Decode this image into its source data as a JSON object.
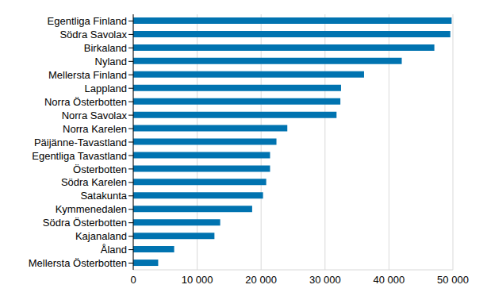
{
  "chart_data": {
    "type": "bar",
    "orientation": "horizontal",
    "categories": [
      "Egentliga Finland",
      "Södra Savolax",
      "Birkaland",
      "Nyland",
      "Mellersta Finland",
      "Lappland",
      "Norra Österbotten",
      "Norra Savolax",
      "Norra Karelen",
      "Päijänne-Tavastland",
      "Egentliga Tavastland",
      "Österbotten",
      "Södra Karelen",
      "Satakunta",
      "Kymmenedalen",
      "Södra Österbotten",
      "Kajanaland",
      "Åland",
      "Mellersta Österbotten"
    ],
    "values": [
      49800,
      49600,
      47100,
      42000,
      36100,
      32500,
      32400,
      31800,
      24100,
      22400,
      21400,
      21400,
      20800,
      20300,
      18600,
      13600,
      12700,
      6400,
      3900
    ],
    "color": "#0073b0",
    "xlim": [
      0,
      50000
    ],
    "xticks": [
      0,
      {
        "value": 10000,
        "label": "10 000"
      },
      {
        "value": 20000,
        "label": "20 000"
      },
      {
        "value": 30000,
        "label": "30 000"
      },
      {
        "value": 40000,
        "label": "40 000"
      },
      {
        "value": 50000,
        "label": "50 000"
      }
    ],
    "grid": true
  }
}
